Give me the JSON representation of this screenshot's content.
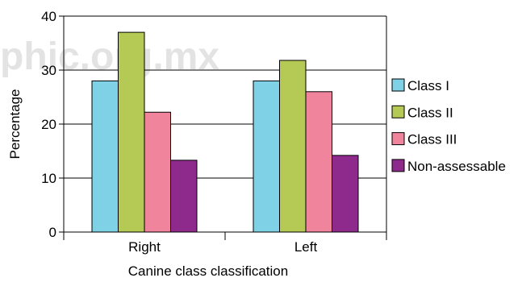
{
  "watermark": "phic.org.mx",
  "chart_data": {
    "type": "bar",
    "title": "",
    "xlabel": "Canine class classification",
    "ylabel": "Percentage",
    "ylim": [
      0,
      40
    ],
    "yticks": [
      "0",
      "10",
      "20",
      "30",
      "40"
    ],
    "categories": [
      "Right",
      "Left"
    ],
    "grid": "horizontal",
    "legend_position": "right",
    "series": [
      {
        "name": "Class I",
        "color": "#7fd1e6",
        "values": [
          28,
          28
        ]
      },
      {
        "name": "Class II",
        "color": "#b5c955",
        "values": [
          37,
          31.8
        ]
      },
      {
        "name": "Class III",
        "color": "#f0849c",
        "values": [
          22.2,
          26
        ]
      },
      {
        "name": "Non-assessable",
        "color": "#8e2a8c",
        "values": [
          13.3,
          14.2
        ]
      }
    ]
  }
}
